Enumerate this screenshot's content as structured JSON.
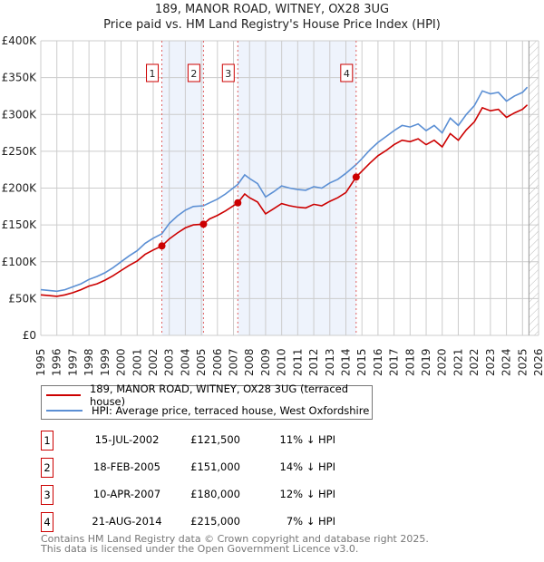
{
  "title": "189, MANOR ROAD, WITNEY, OX28 3UG",
  "subtitle": "Price paid vs. HM Land Registry's House Price Index (HPI)",
  "colors": {
    "price": "#cc0000",
    "hpi": "#5b8fd4",
    "shade": "#eef3fc",
    "marker": "#cc0000"
  },
  "chart_data": {
    "type": "line",
    "title": "189, MANOR ROAD, WITNEY, OX28 3UG",
    "subtitle": "Price paid vs. HM Land Registry's House Price Index (HPI)",
    "xlim": [
      1995,
      2026
    ],
    "ylim": [
      0,
      400000
    ],
    "y_ticks": [
      0,
      50000,
      100000,
      150000,
      200000,
      250000,
      300000,
      350000,
      400000
    ],
    "y_tick_labels": [
      "£0",
      "£50K",
      "£100K",
      "£150K",
      "£200K",
      "£250K",
      "£300K",
      "£350K",
      "£400K"
    ],
    "x_ticks": [
      "1995",
      "1996",
      "1997",
      "1998",
      "1999",
      "2000",
      "2001",
      "2002",
      "2003",
      "2004",
      "2005",
      "2006",
      "2007",
      "2008",
      "2009",
      "2010",
      "2011",
      "2012",
      "2013",
      "2014",
      "2015",
      "2016",
      "2017",
      "2018",
      "2019",
      "2020",
      "2021",
      "2022",
      "2023",
      "2024",
      "2025",
      "2026"
    ],
    "grid": true,
    "legend_placement": "bottom",
    "shaded_periods": [
      [
        2002.54,
        2005.13
      ],
      [
        2007.27,
        2014.64
      ]
    ],
    "forecast_hatch_from": 2025.4,
    "sales": [
      {
        "label": "1",
        "x": 2002.54,
        "y": 121500
      },
      {
        "label": "2",
        "x": 2005.13,
        "y": 151000
      },
      {
        "label": "3",
        "x": 2007.27,
        "y": 180000
      },
      {
        "label": "4",
        "x": 2014.64,
        "y": 215000
      }
    ],
    "series": [
      {
        "name": "189, MANOR ROAD, WITNEY, OX28 3UG (terraced house)",
        "color": "#cc0000",
        "points": [
          [
            1995,
            55
          ],
          [
            1995.5,
            54
          ],
          [
            1996,
            53
          ],
          [
            1996.5,
            55
          ],
          [
            1997,
            58
          ],
          [
            1997.5,
            62
          ],
          [
            1998,
            67
          ],
          [
            1998.5,
            70
          ],
          [
            1999,
            75
          ],
          [
            1999.5,
            81
          ],
          [
            2000,
            88
          ],
          [
            2000.5,
            95
          ],
          [
            2001,
            101
          ],
          [
            2001.5,
            110
          ],
          [
            2002,
            116
          ],
          [
            2002.54,
            121.5
          ],
          [
            2003,
            131
          ],
          [
            2003.5,
            139
          ],
          [
            2004,
            146
          ],
          [
            2004.5,
            150
          ],
          [
            2005.13,
            151
          ],
          [
            2005.5,
            158
          ],
          [
            2006,
            163
          ],
          [
            2006.5,
            169
          ],
          [
            2007.27,
            180
          ],
          [
            2007.7,
            192
          ],
          [
            2008,
            187
          ],
          [
            2008.5,
            181
          ],
          [
            2009,
            165
          ],
          [
            2009.5,
            172
          ],
          [
            2010,
            179
          ],
          [
            2010.5,
            176
          ],
          [
            2011,
            174
          ],
          [
            2011.5,
            173
          ],
          [
            2012,
            178
          ],
          [
            2012.5,
            176
          ],
          [
            2013,
            182
          ],
          [
            2013.5,
            187
          ],
          [
            2014,
            194
          ],
          [
            2014.64,
            215
          ],
          [
            2015,
            223
          ],
          [
            2015.5,
            234
          ],
          [
            2016,
            244
          ],
          [
            2016.5,
            251
          ],
          [
            2017,
            259
          ],
          [
            2017.5,
            265
          ],
          [
            2018,
            263
          ],
          [
            2018.5,
            267
          ],
          [
            2019,
            259
          ],
          [
            2019.5,
            265
          ],
          [
            2020,
            256
          ],
          [
            2020.5,
            274
          ],
          [
            2021,
            265
          ],
          [
            2021.5,
            279
          ],
          [
            2022,
            290
          ],
          [
            2022.5,
            309
          ],
          [
            2023,
            305
          ],
          [
            2023.5,
            307
          ],
          [
            2024,
            296
          ],
          [
            2024.5,
            302
          ],
          [
            2025,
            307
          ],
          [
            2025.3,
            313
          ]
        ]
      },
      {
        "name": "HPI: Average price, terraced house, West Oxfordshire",
        "color": "#5b8fd4",
        "points": [
          [
            1995,
            62
          ],
          [
            1995.5,
            61
          ],
          [
            1996,
            60
          ],
          [
            1996.5,
            62
          ],
          [
            1997,
            66
          ],
          [
            1997.5,
            70
          ],
          [
            1998,
            76
          ],
          [
            1998.5,
            80
          ],
          [
            1999,
            85
          ],
          [
            1999.5,
            92
          ],
          [
            2000,
            100
          ],
          [
            2000.5,
            108
          ],
          [
            2001,
            115
          ],
          [
            2001.5,
            125
          ],
          [
            2002,
            132
          ],
          [
            2002.54,
            138
          ],
          [
            2003,
            152
          ],
          [
            2003.5,
            162
          ],
          [
            2004,
            170
          ],
          [
            2004.5,
            175
          ],
          [
            2005.13,
            176
          ],
          [
            2005.5,
            180
          ],
          [
            2006,
            185
          ],
          [
            2006.5,
            192
          ],
          [
            2007.27,
            205
          ],
          [
            2007.7,
            218
          ],
          [
            2008,
            213
          ],
          [
            2008.5,
            206
          ],
          [
            2009,
            188
          ],
          [
            2009.5,
            195
          ],
          [
            2010,
            203
          ],
          [
            2010.5,
            200
          ],
          [
            2011,
            198
          ],
          [
            2011.5,
            197
          ],
          [
            2012,
            202
          ],
          [
            2012.5,
            200
          ],
          [
            2013,
            207
          ],
          [
            2013.5,
            212
          ],
          [
            2014,
            220
          ],
          [
            2014.64,
            232
          ],
          [
            2015,
            240
          ],
          [
            2015.5,
            252
          ],
          [
            2016,
            262
          ],
          [
            2016.5,
            270
          ],
          [
            2017,
            278
          ],
          [
            2017.5,
            285
          ],
          [
            2018,
            283
          ],
          [
            2018.5,
            287
          ],
          [
            2019,
            278
          ],
          [
            2019.5,
            285
          ],
          [
            2020,
            275
          ],
          [
            2020.5,
            295
          ],
          [
            2021,
            285
          ],
          [
            2021.5,
            300
          ],
          [
            2022,
            312
          ],
          [
            2022.5,
            332
          ],
          [
            2023,
            328
          ],
          [
            2023.5,
            330
          ],
          [
            2024,
            318
          ],
          [
            2024.5,
            325
          ],
          [
            2025,
            330
          ],
          [
            2025.3,
            337
          ]
        ]
      }
    ],
    "y_units_of_points": "thousands GBP"
  },
  "legend": {
    "price_label": "189, MANOR ROAD, WITNEY, OX28 3UG (terraced house)",
    "hpi_label": "HPI: Average price, terraced house, West Oxfordshire"
  },
  "transactions": [
    {
      "num": "1",
      "date": "15-JUL-2002",
      "price": "£121,500",
      "diff": "11% ↓ HPI"
    },
    {
      "num": "2",
      "date": "18-FEB-2005",
      "price": "£151,000",
      "diff": "14% ↓ HPI"
    },
    {
      "num": "3",
      "date": "10-APR-2007",
      "price": "£180,000",
      "diff": "12% ↓ HPI"
    },
    {
      "num": "4",
      "date": "21-AUG-2014",
      "price": "£215,000",
      "diff": "7% ↓ HPI"
    }
  ],
  "footer": {
    "line1": "Contains HM Land Registry data © Crown copyright and database right 2025.",
    "line2": "This data is licensed under the Open Government Licence v3.0."
  }
}
